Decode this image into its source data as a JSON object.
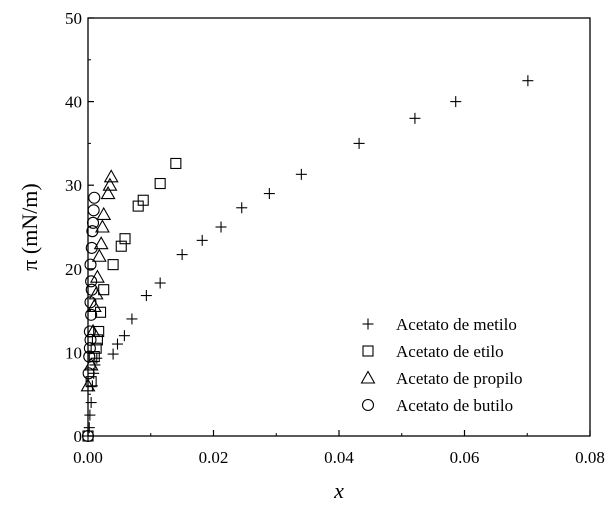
{
  "chart_data": {
    "type": "scatter",
    "title": "",
    "xlabel": "x",
    "ylabel": "π (mN/m)",
    "xlim": [
      0.0,
      0.08
    ],
    "ylim": [
      0,
      50
    ],
    "xticks": [
      "0.00",
      "0.02",
      "0.04",
      "0.06",
      "0.08"
    ],
    "yticks": [
      "0",
      "10",
      "20",
      "30",
      "40",
      "50"
    ],
    "grid": false,
    "legend_position": "bottom-right",
    "series": [
      {
        "name": "Acetato de metilo",
        "marker": "plus",
        "points": [
          [
            0.0,
            0.0
          ],
          [
            0.0002,
            1.0
          ],
          [
            0.0003,
            2.5
          ],
          [
            0.0005,
            4.0
          ],
          [
            0.0007,
            6.0
          ],
          [
            0.0009,
            7.5
          ],
          [
            0.0011,
            8.5
          ],
          [
            0.0014,
            9.3
          ],
          [
            0.004,
            9.8
          ],
          [
            0.0047,
            11.0
          ],
          [
            0.0058,
            12.0
          ],
          [
            0.007,
            14.0
          ],
          [
            0.0093,
            16.8
          ],
          [
            0.0115,
            18.3
          ],
          [
            0.015,
            21.7
          ],
          [
            0.0182,
            23.4
          ],
          [
            0.0212,
            25.0
          ],
          [
            0.0245,
            27.3
          ],
          [
            0.0289,
            29.0
          ],
          [
            0.034,
            31.3
          ],
          [
            0.0432,
            35.0
          ],
          [
            0.0521,
            38.0
          ],
          [
            0.0586,
            40.0
          ],
          [
            0.0701,
            42.5
          ]
        ]
      },
      {
        "name": "Acetato de etilo",
        "marker": "square",
        "points": [
          [
            0.0,
            0.0
          ],
          [
            0.0005,
            6.5
          ],
          [
            0.001,
            9.5
          ],
          [
            0.0013,
            10.5
          ],
          [
            0.0015,
            11.5
          ],
          [
            0.0017,
            12.5
          ],
          [
            0.002,
            14.8
          ],
          [
            0.0025,
            17.5
          ],
          [
            0.004,
            20.5
          ],
          [
            0.0053,
            22.7
          ],
          [
            0.0059,
            23.6
          ],
          [
            0.008,
            27.5
          ],
          [
            0.0088,
            28.2
          ],
          [
            0.0115,
            30.2
          ],
          [
            0.014,
            32.6
          ]
        ]
      },
      {
        "name": "Acetato de propilo",
        "marker": "triangle",
        "points": [
          [
            0.0,
            6.0
          ],
          [
            0.0005,
            8.5
          ],
          [
            0.0008,
            12.5
          ],
          [
            0.001,
            15.5
          ],
          [
            0.0013,
            17.0
          ],
          [
            0.0015,
            19.0
          ],
          [
            0.0018,
            21.5
          ],
          [
            0.0021,
            23.0
          ],
          [
            0.0023,
            25.0
          ],
          [
            0.0025,
            26.5
          ],
          [
            0.0032,
            29.0
          ],
          [
            0.0035,
            30.0
          ],
          [
            0.0037,
            31.0
          ]
        ]
      },
      {
        "name": "Acetato de butilo",
        "marker": "circle",
        "points": [
          [
            0.0,
            0.0
          ],
          [
            0.0001,
            7.5
          ],
          [
            0.0002,
            9.5
          ],
          [
            0.0003,
            10.5
          ],
          [
            0.0004,
            11.5
          ],
          [
            0.0003,
            12.5
          ],
          [
            0.0005,
            14.5
          ],
          [
            0.0004,
            16.0
          ],
          [
            0.0006,
            17.5
          ],
          [
            0.0005,
            18.5
          ],
          [
            0.0004,
            20.5
          ],
          [
            0.0006,
            22.5
          ],
          [
            0.0007,
            24.5
          ],
          [
            0.0008,
            25.5
          ],
          [
            0.0009,
            27.0
          ],
          [
            0.001,
            28.5
          ]
        ]
      }
    ]
  }
}
